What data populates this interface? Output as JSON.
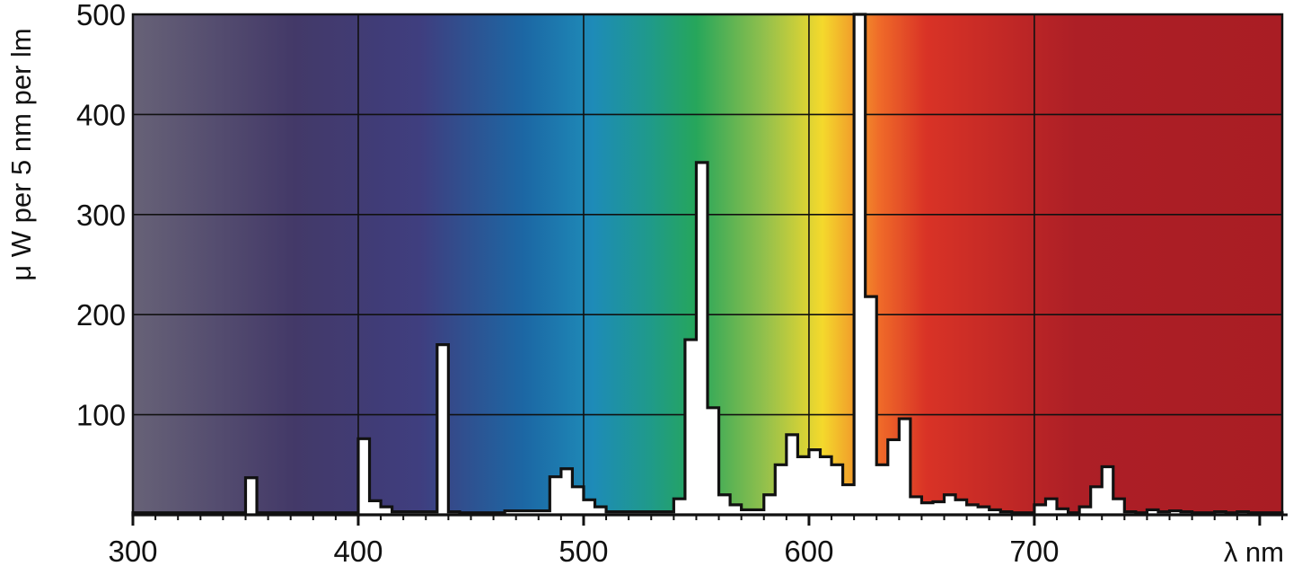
{
  "chart_data": {
    "type": "area",
    "title": "",
    "xlabel": "λ nm",
    "ylabel": "μ W per 5 nm per lm",
    "xlim": [
      300,
      1000
    ],
    "xlim_shown": [
      300,
      810
    ],
    "ylim": [
      0,
      500
    ],
    "x_ticks": [
      300,
      400,
      500,
      600,
      700
    ],
    "y_ticks": [
      100,
      200,
      300,
      400,
      500
    ],
    "y_tick_labels": [
      "100",
      "200",
      "300",
      "400",
      "500"
    ],
    "x_tick_labels": [
      "300",
      "400",
      "500",
      "600",
      "700"
    ],
    "grid": true,
    "background": "visible spectrum color gradient",
    "spectrum_colors": [
      "#676277",
      "#433968",
      "#3f3e7f",
      "#1c67a4",
      "#1e8bb8",
      "#1f9a8a",
      "#26a65b",
      "#93c04c",
      "#f4d92c",
      "#ef6a29",
      "#d93326",
      "#ad1f26",
      "#a91d24"
    ],
    "series": [
      {
        "x": [
          300,
          350,
          355,
          400,
          405,
          410,
          415,
          435,
          440,
          445,
          465,
          485,
          490,
          495,
          500,
          505,
          510,
          530,
          540,
          545,
          550,
          555,
          560,
          565,
          570,
          575,
          580,
          585,
          590,
          595,
          600,
          605,
          610,
          615,
          620,
          625,
          630,
          635,
          640,
          645,
          650,
          655,
          660,
          665,
          670,
          675,
          680,
          685,
          690,
          700,
          705,
          710,
          715,
          720,
          725,
          730,
          735,
          740,
          745,
          750,
          755,
          760,
          765,
          770,
          775,
          780,
          785,
          790,
          795,
          800,
          805
        ],
        "values": [
          2,
          37,
          2,
          76,
          14,
          8,
          3,
          170,
          3,
          2,
          4,
          38,
          46,
          28,
          15,
          8,
          3,
          3,
          16,
          175,
          352,
          107,
          20,
          10,
          5,
          5,
          20,
          50,
          80,
          58,
          65,
          58,
          50,
          30,
          500,
          218,
          50,
          75,
          96,
          18,
          12,
          13,
          20,
          15,
          10,
          8,
          5,
          3,
          2,
          10,
          16,
          6,
          2,
          8,
          28,
          48,
          16,
          3,
          2,
          5,
          3,
          4,
          3,
          2,
          2,
          3,
          2,
          3,
          2,
          2,
          2
        ]
      }
    ]
  }
}
